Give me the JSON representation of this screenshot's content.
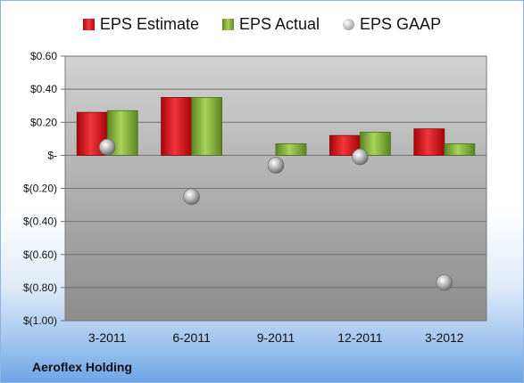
{
  "legend": {
    "estimate_label": "EPS Estimate",
    "actual_label": "EPS Actual",
    "gaap_label": "EPS GAAP"
  },
  "footer": {
    "company": "Aeroflex Holding"
  },
  "colors": {
    "estimate": "#d9141a",
    "actual": "#8ab743",
    "gaap": "#a5a5a5"
  },
  "chart_data": {
    "type": "bar",
    "categories": [
      "3-2011",
      "6-2011",
      "9-2011",
      "12-2011",
      "3-2012"
    ],
    "series": [
      {
        "name": "EPS Estimate",
        "type": "bar",
        "values": [
          0.26,
          0.35,
          null,
          0.12,
          0.16
        ]
      },
      {
        "name": "EPS Actual",
        "type": "bar",
        "values": [
          0.27,
          0.35,
          0.07,
          0.14,
          0.07
        ]
      },
      {
        "name": "EPS GAAP",
        "type": "scatter",
        "values": [
          0.05,
          -0.25,
          -0.06,
          -0.01,
          -0.77
        ]
      }
    ],
    "ylim": [
      -1.0,
      0.6
    ],
    "yticks": [
      0.6,
      0.4,
      0.2,
      0,
      -0.2,
      -0.4,
      -0.6,
      -0.8,
      -1.0
    ],
    "ytick_labels": [
      "$0.60",
      "$0.40",
      "$0.20",
      "$-",
      "$(0.20)",
      "$(0.40)",
      "$(0.60)",
      "$(0.80)",
      "$(1.00)"
    ],
    "grid": true,
    "legend_position": "top"
  }
}
